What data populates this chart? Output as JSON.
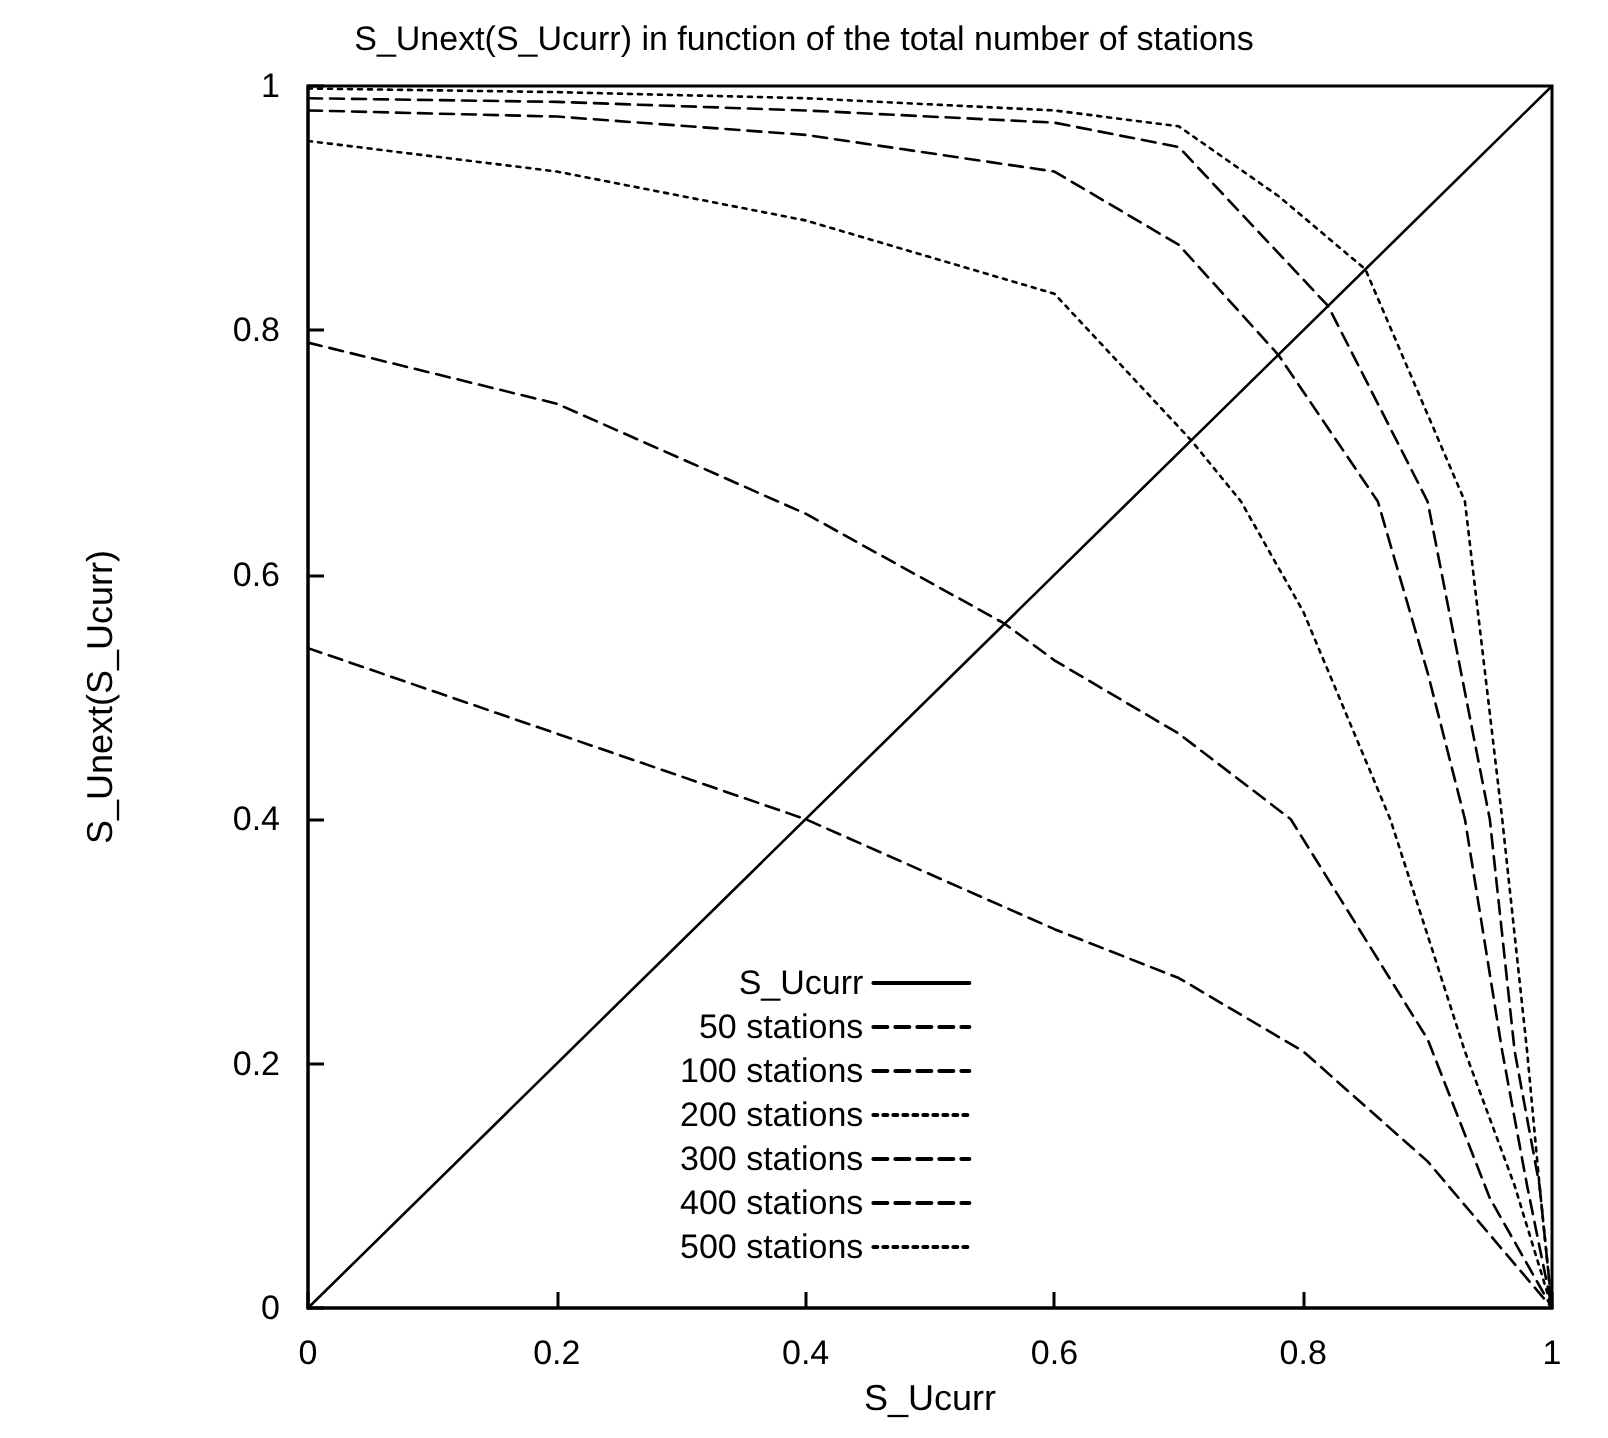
{
  "chart_data": {
    "type": "line",
    "title": "S_Unext(S_Ucurr) in function of the total number of stations",
    "xlabel": "S_Ucurr",
    "ylabel": "S_Unext(S_Ucurr)",
    "xlim": [
      0,
      1
    ],
    "ylim": [
      0,
      1
    ],
    "xticks": [
      0,
      0.2,
      0.4,
      0.6,
      0.8,
      1
    ],
    "yticks": [
      0,
      0.2,
      0.4,
      0.6,
      0.8,
      1
    ],
    "grid": false,
    "legend": "bottom",
    "marker": "none",
    "series": [
      {
        "name": "S_Ucurr",
        "color": "#000000",
        "line_style": "solid",
        "x": [
          0,
          1
        ],
        "values": [
          0,
          1
        ]
      },
      {
        "name": "50 stations",
        "color": "#000000",
        "line_style": "dashed",
        "x": [
          0,
          0.2,
          0.4,
          0.6,
          0.7,
          0.8,
          0.9,
          0.95,
          1
        ],
        "values": [
          0.54,
          0.47,
          0.4,
          0.31,
          0.27,
          0.21,
          0.12,
          0.06,
          0
        ]
      },
      {
        "name": "100 stations",
        "color": "#000000",
        "line_style": "dashed",
        "x": [
          0,
          0.2,
          0.4,
          0.56,
          0.6,
          0.7,
          0.79,
          0.9,
          0.95,
          1
        ],
        "values": [
          0.79,
          0.74,
          0.65,
          0.56,
          0.53,
          0.47,
          0.4,
          0.22,
          0.09,
          0
        ]
      },
      {
        "name": "200 stations",
        "color": "#000000",
        "line_style": "dotted",
        "x": [
          0,
          0.2,
          0.4,
          0.6,
          0.71,
          0.75,
          0.8,
          0.87,
          0.93,
          0.97,
          1
        ],
        "values": [
          0.955,
          0.93,
          0.89,
          0.83,
          0.71,
          0.66,
          0.57,
          0.4,
          0.21,
          0.1,
          0
        ]
      },
      {
        "name": "300 stations",
        "color": "#000000",
        "line_style": "dashed",
        "x": [
          0,
          0.2,
          0.4,
          0.6,
          0.7,
          0.78,
          0.86,
          0.9,
          0.93,
          0.96,
          0.98,
          1
        ],
        "values": [
          0.98,
          0.975,
          0.96,
          0.93,
          0.87,
          0.78,
          0.66,
          0.52,
          0.4,
          0.21,
          0.1,
          0
        ]
      },
      {
        "name": "400 stations",
        "color": "#000000",
        "line_style": "dashed",
        "x": [
          0,
          0.2,
          0.4,
          0.6,
          0.7,
          0.82,
          0.9,
          0.95,
          0.97,
          0.99,
          1
        ],
        "values": [
          0.99,
          0.987,
          0.98,
          0.97,
          0.95,
          0.82,
          0.66,
          0.4,
          0.21,
          0.1,
          0
        ]
      },
      {
        "name": "500 stations",
        "color": "#000000",
        "line_style": "dotted",
        "x": [
          0,
          0.2,
          0.4,
          0.6,
          0.7,
          0.78,
          0.85,
          0.93,
          0.96,
          0.98,
          0.99,
          1
        ],
        "values": [
          0.998,
          0.995,
          0.99,
          0.98,
          0.967,
          0.91,
          0.85,
          0.66,
          0.4,
          0.21,
          0.1,
          0
        ]
      }
    ]
  }
}
